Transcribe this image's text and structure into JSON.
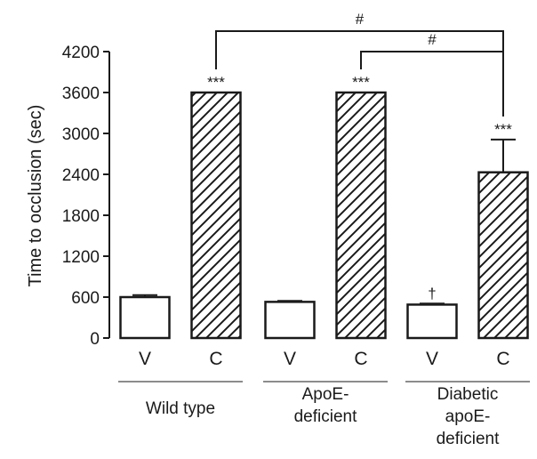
{
  "chart_data": {
    "type": "bar",
    "title": "",
    "xlabel": "",
    "ylabel": "Time to occlusion (sec)",
    "ylim": [
      0,
      4200
    ],
    "yticks": [
      0,
      600,
      1200,
      1800,
      2400,
      3000,
      3600,
      4200
    ],
    "grid": false,
    "groups": [
      {
        "label": [
          "Wild type"
        ],
        "bars": [
          {
            "category": "V",
            "value": 600,
            "error": 30,
            "pattern": "plain",
            "annotation": ""
          },
          {
            "category": "C",
            "value": 3600,
            "error": 0,
            "pattern": "hatched",
            "annotation": "***"
          }
        ]
      },
      {
        "label": [
          "ApoE-",
          "deficient"
        ],
        "bars": [
          {
            "category": "V",
            "value": 530,
            "error": 15,
            "pattern": "plain",
            "annotation": ""
          },
          {
            "category": "C",
            "value": 3600,
            "error": 0,
            "pattern": "hatched",
            "annotation": "***"
          }
        ]
      },
      {
        "label": [
          "Diabetic",
          "apoE-",
          "deficient"
        ],
        "bars": [
          {
            "category": "V",
            "value": 490,
            "error": 15,
            "pattern": "plain",
            "annotation": "†"
          },
          {
            "category": "C",
            "value": 2430,
            "error": 480,
            "pattern": "hatched",
            "annotation": "***"
          }
        ]
      }
    ],
    "comparisons": [
      {
        "from_group": 0,
        "to_group": 2,
        "bar": "C",
        "label": "#"
      },
      {
        "from_group": 1,
        "to_group": 2,
        "bar": "C",
        "label": "#"
      }
    ]
  }
}
